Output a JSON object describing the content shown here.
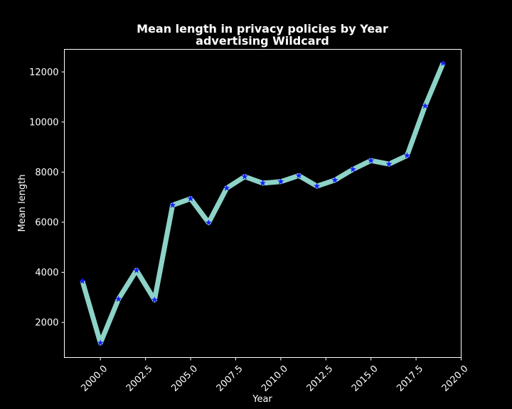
{
  "chart_data": {
    "type": "line",
    "title": "Mean length in privacy policies by Year",
    "subtitle": "advertising Wildcard",
    "xlabel": "Year",
    "ylabel": "Mean length",
    "xlim": [
      1998.0,
      2020.0
    ],
    "ylim": [
      600,
      12900
    ],
    "xticks": [
      2000.0,
      2002.5,
      2005.0,
      2007.5,
      2010.0,
      2012.5,
      2015.0,
      2017.5,
      2020.0
    ],
    "xtick_labels": [
      "2000.0",
      "2002.5",
      "2005.0",
      "2007.5",
      "2010.0",
      "2012.5",
      "2015.0",
      "2017.5",
      "2020.0"
    ],
    "yticks": [
      2000,
      4000,
      6000,
      8000,
      10000,
      12000
    ],
    "ytick_labels": [
      "2000",
      "4000",
      "6000",
      "8000",
      "10000",
      "12000"
    ],
    "grid": false,
    "legend": "none",
    "series": [
      {
        "x": [
          1999,
          2000,
          2001,
          2002,
          2003,
          2004,
          2005,
          2006,
          2007,
          2008,
          2009,
          2010,
          2011,
          2012,
          2013,
          2014,
          2015,
          2016,
          2017,
          2018,
          2019
        ],
        "values": [
          3650,
          1180,
          2930,
          4080,
          2900,
          6680,
          6940,
          5980,
          7360,
          7820,
          7560,
          7620,
          7860,
          7440,
          7680,
          8110,
          8460,
          8320,
          8660,
          10640,
          12350
        ],
        "line_color": "#8dd3c7",
        "marker_color": "#1a1aff",
        "marker": "star"
      }
    ],
    "background_color": "#000000",
    "axis_color": "#ffffff"
  }
}
